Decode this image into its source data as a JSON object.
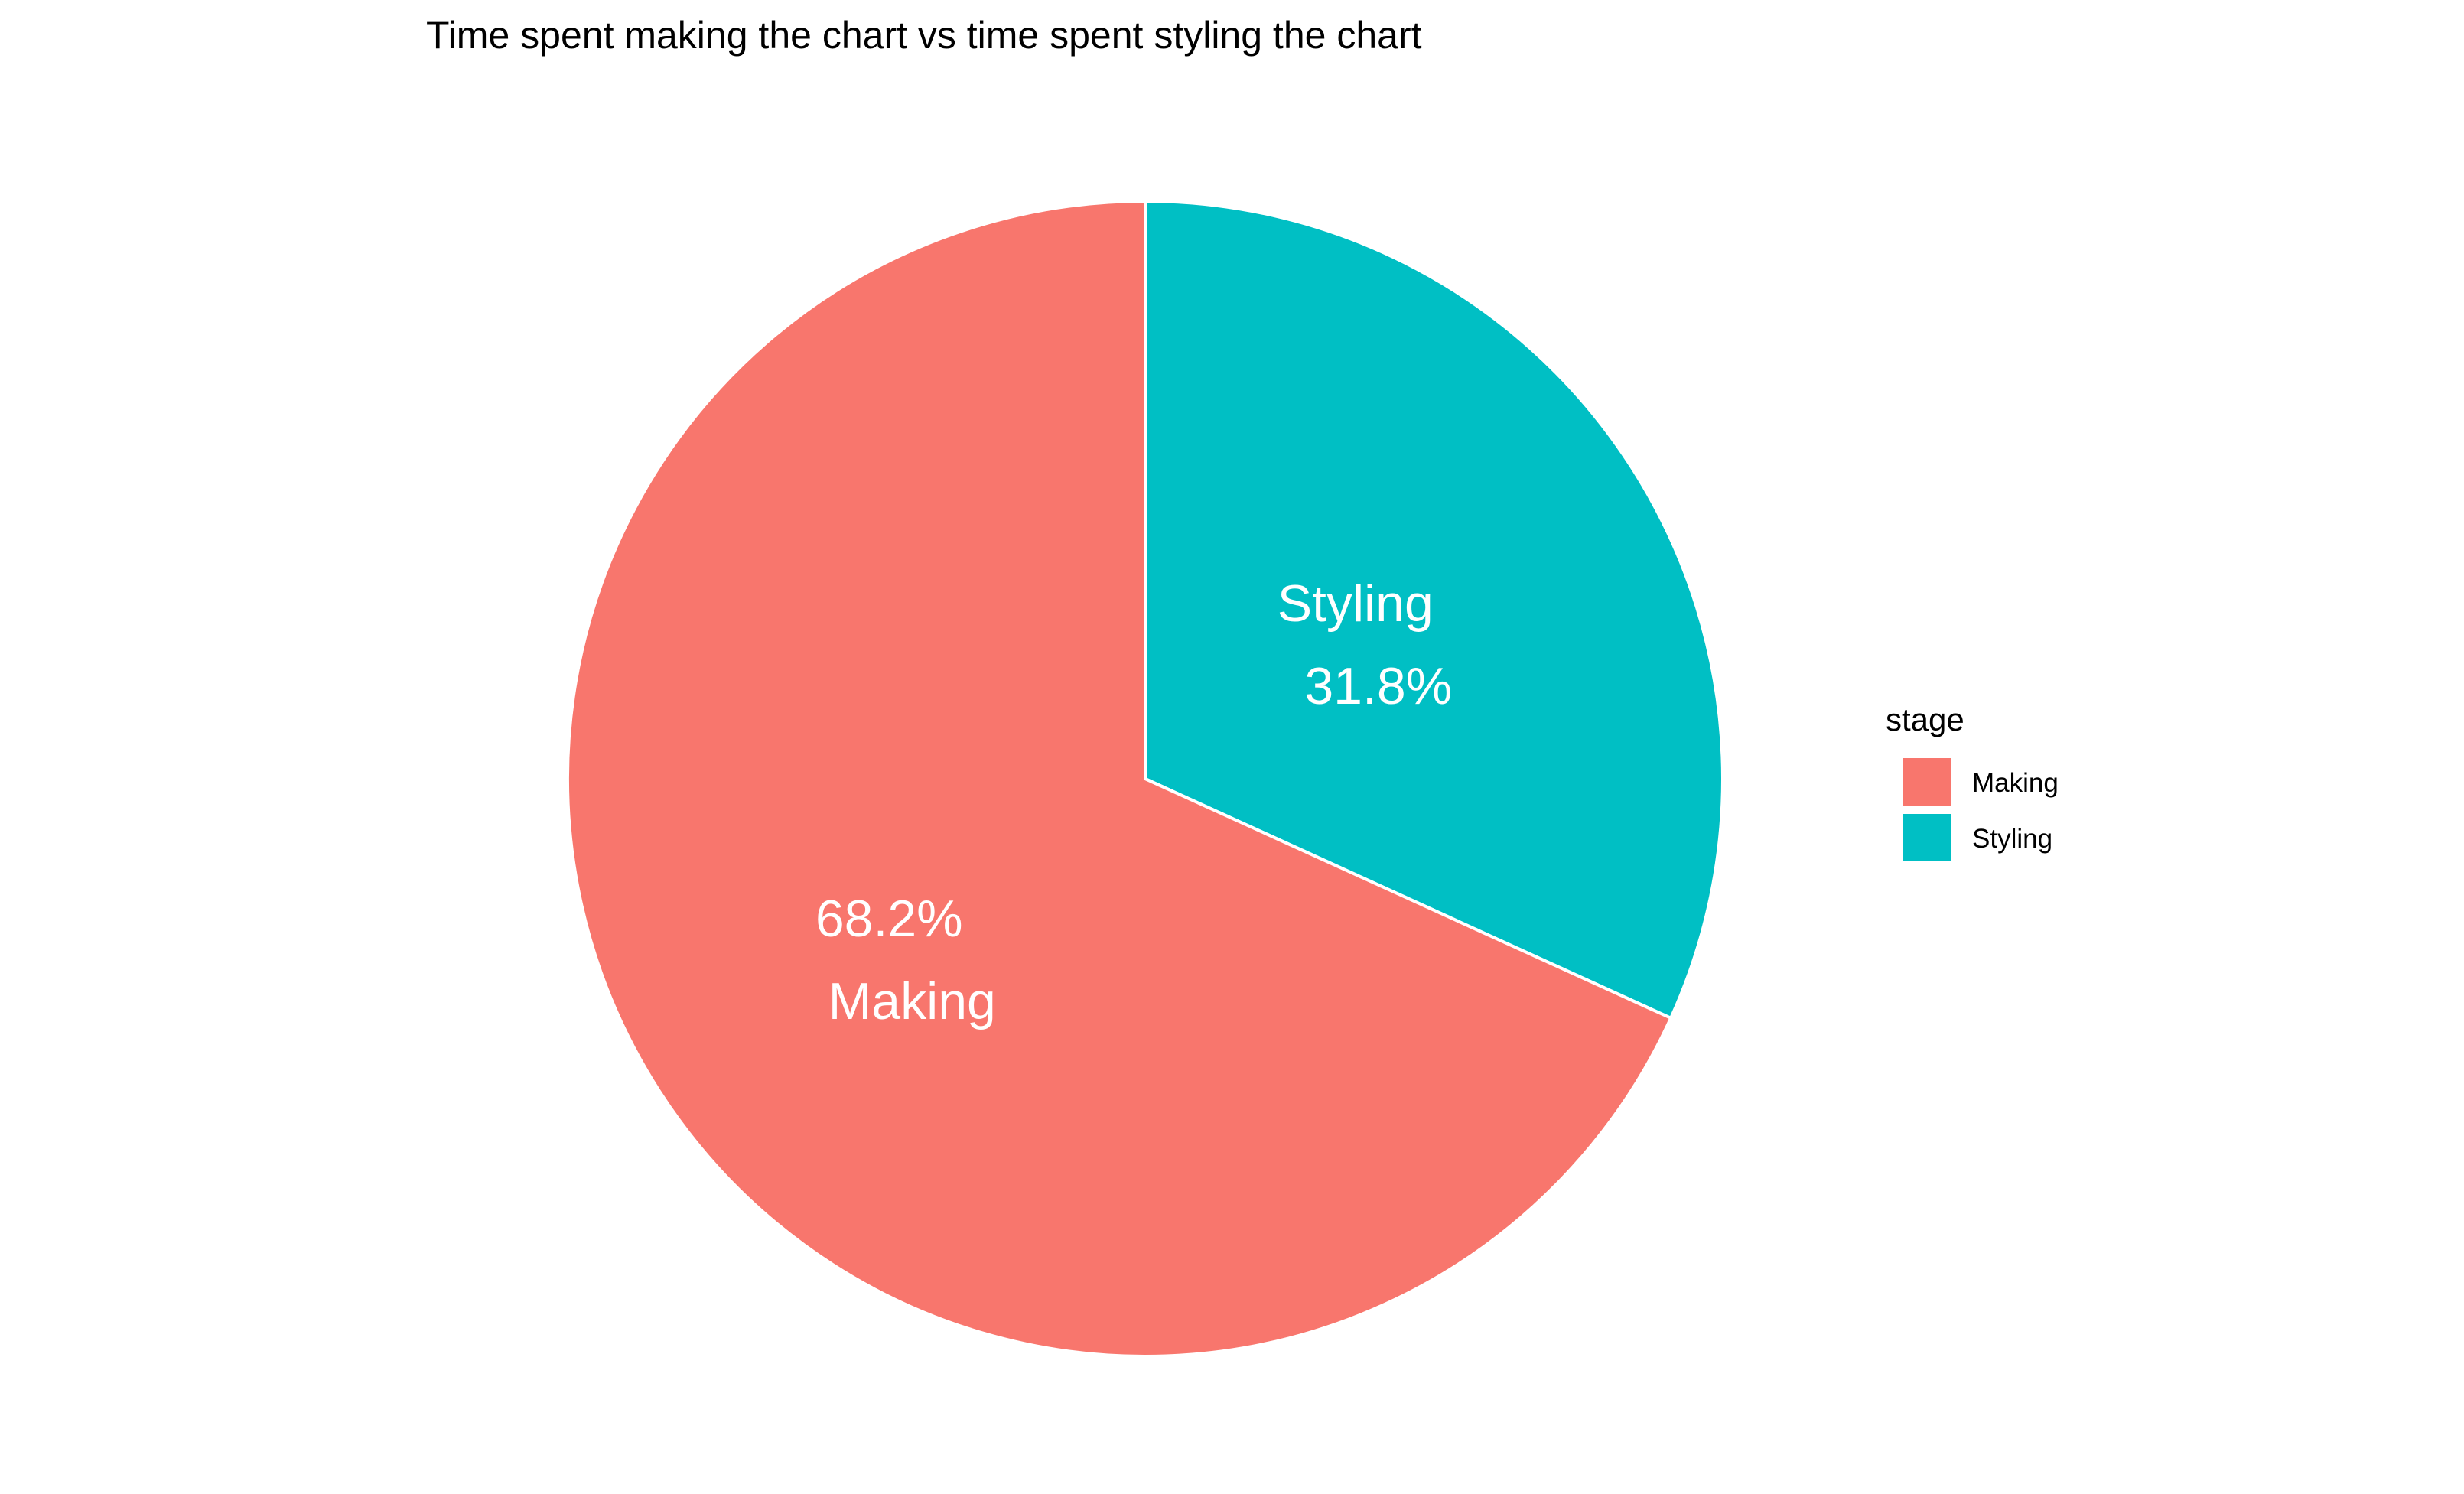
{
  "chart_data": {
    "type": "pie",
    "title": "Time spent making the chart vs time spent styling the chart",
    "slices": [
      {
        "label": "Making",
        "value": 68.2,
        "value_label": "68.2%",
        "color": "#F8766D"
      },
      {
        "label": "Styling",
        "value": 31.8,
        "value_label": "31.8%",
        "color": "#00BFC4"
      }
    ],
    "legend": {
      "title": "stage",
      "position": "right",
      "entries": [
        {
          "label": "Making",
          "color": "#F8766D"
        },
        {
          "label": "Styling",
          "color": "#00BFC4"
        }
      ]
    },
    "slice_border_color": "#ffffff",
    "label_color": "#ffffff"
  }
}
